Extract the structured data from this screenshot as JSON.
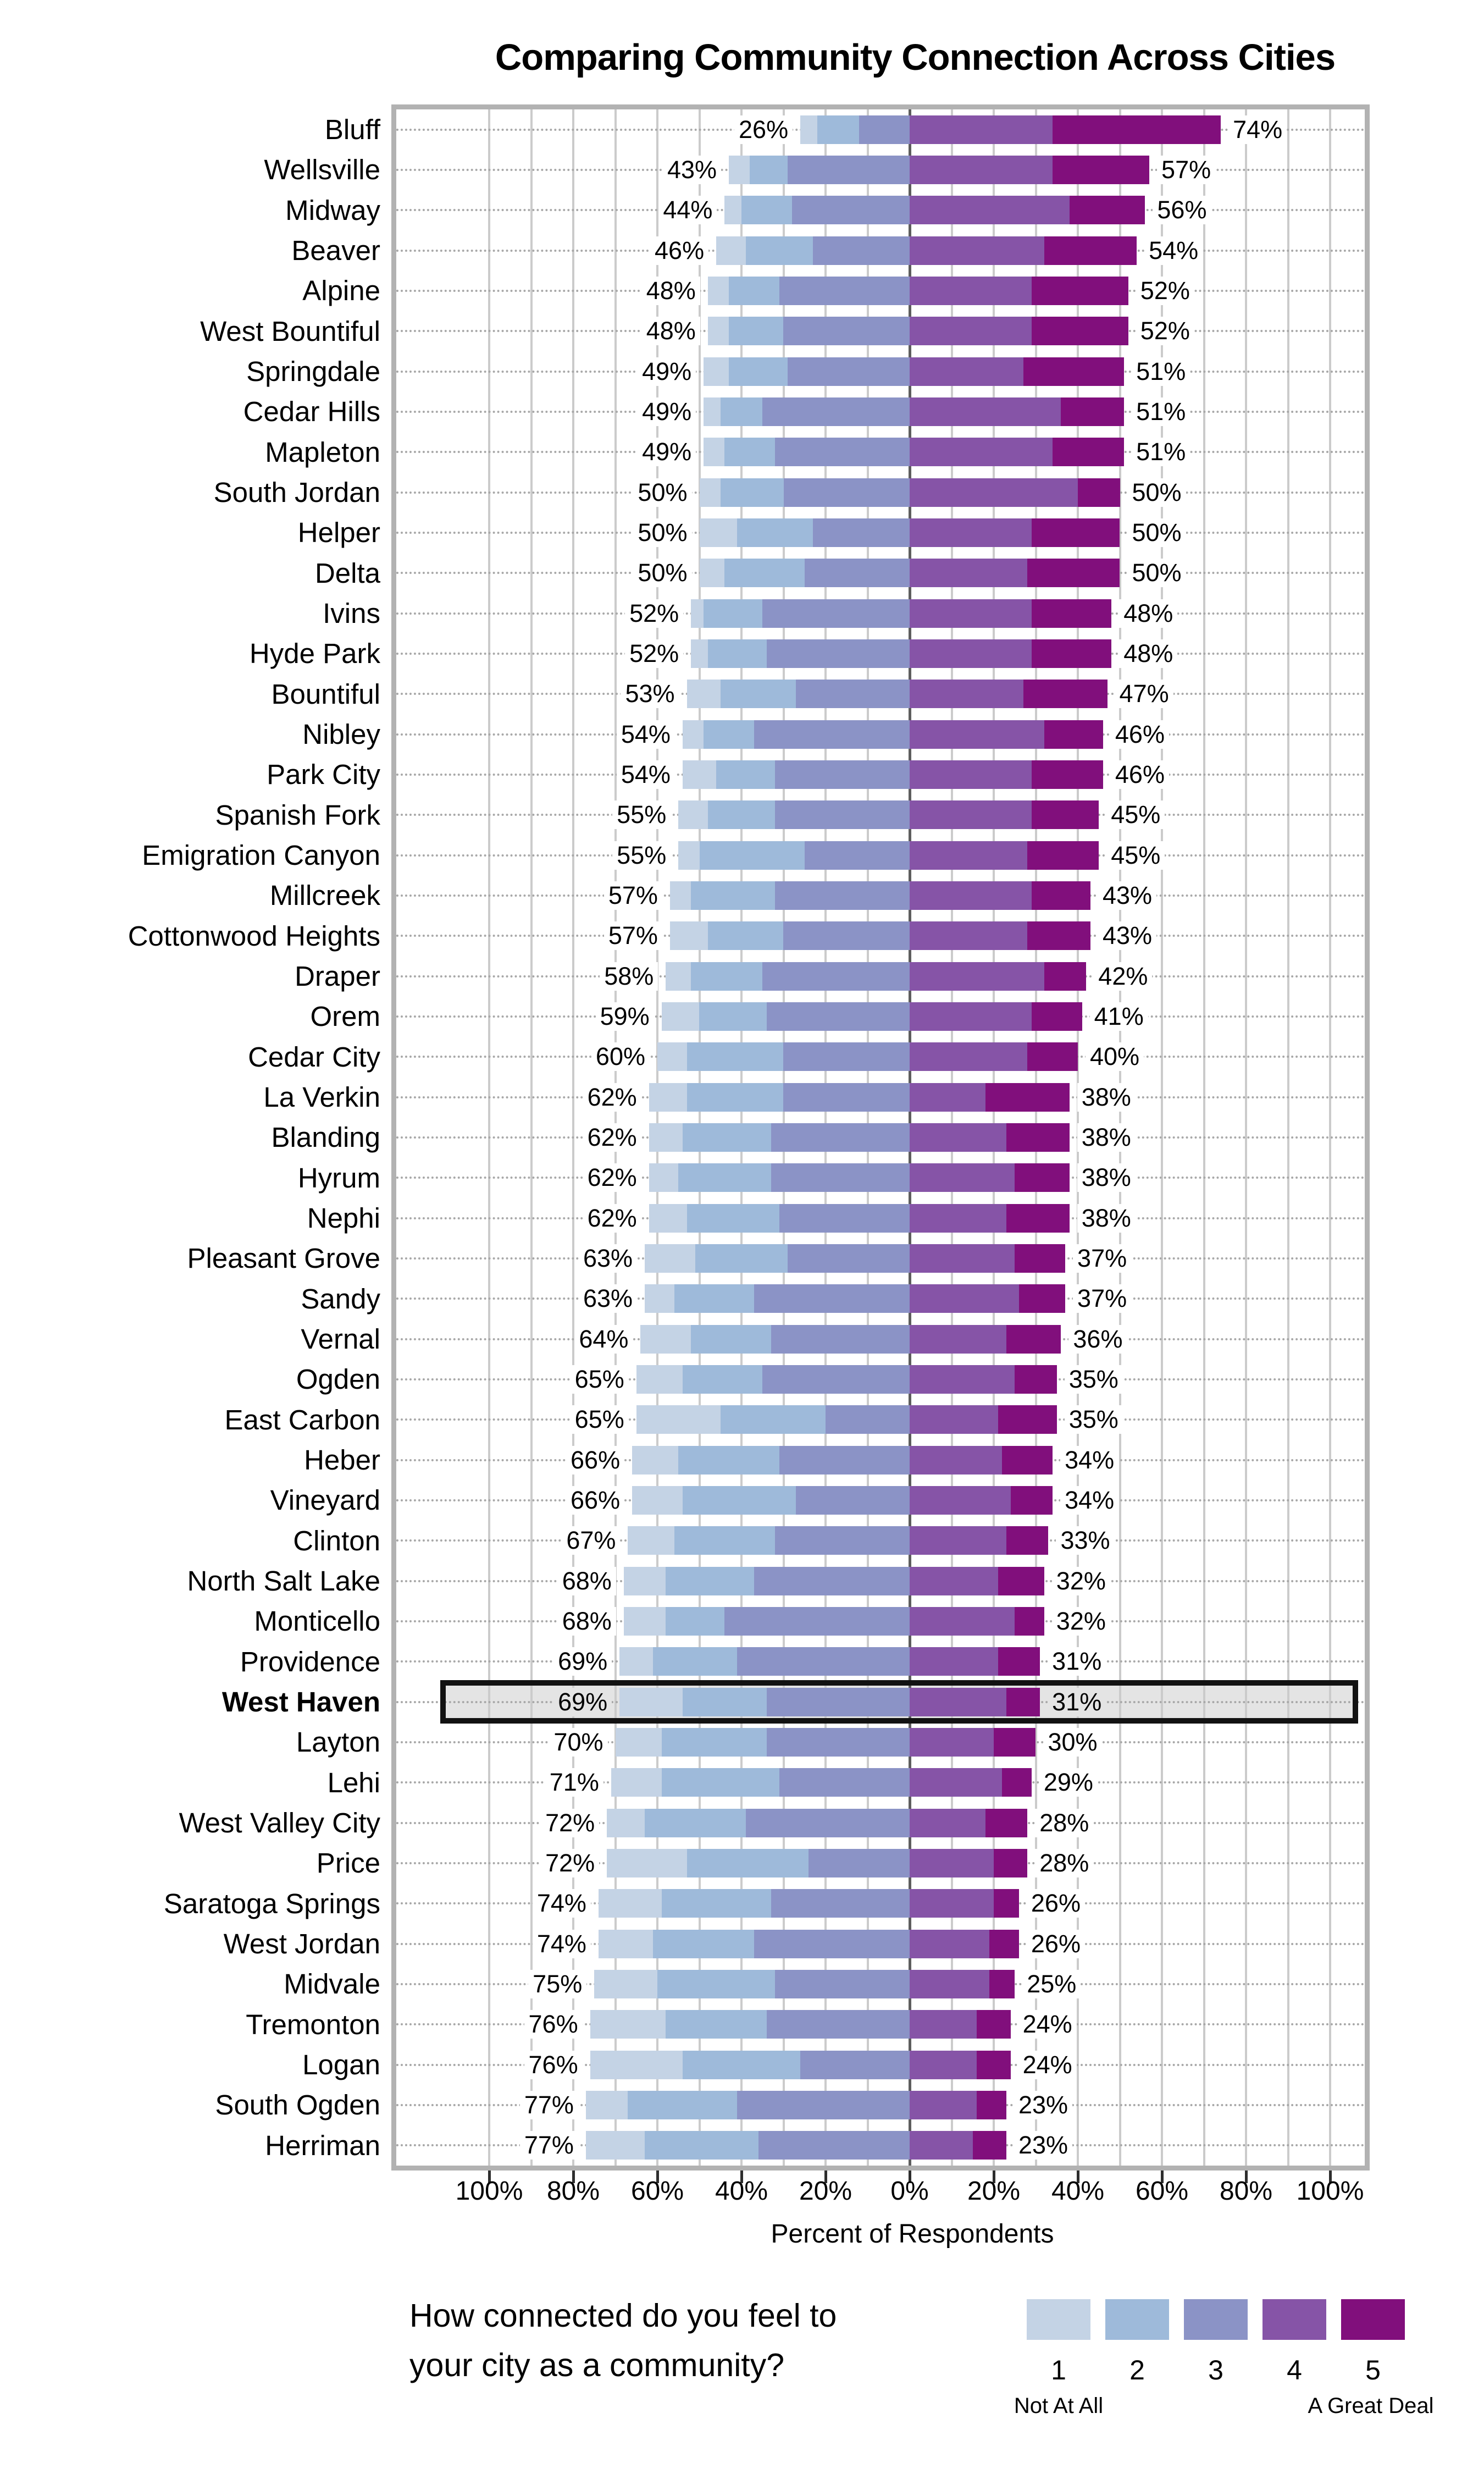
{
  "chart_data": {
    "type": "bar",
    "subtype": "diverging-stacked-likert",
    "title": "Comparing Community Connection Across Cities",
    "xlabel": "Percent of Respondents",
    "x_axis": {
      "tick_values": [
        -100,
        -80,
        -60,
        -40,
        -20,
        0,
        20,
        40,
        60,
        80,
        100
      ],
      "tick_labels": [
        "100%",
        "80%",
        "60%",
        "40%",
        "20%",
        "0%",
        "20%",
        "40%",
        "60%",
        "80%",
        "100%"
      ],
      "gridline_step_pct": 10,
      "xlim": [
        -123,
        109
      ]
    },
    "legend": {
      "question_line1": "How connected do you feel to",
      "question_line2": "your city as a community?",
      "levels": [
        "1",
        "2",
        "3",
        "4",
        "5"
      ],
      "low_label": "Not At All",
      "high_label": "A Great Deal",
      "level_colors": [
        "#c4d3e5",
        "#9ebada",
        "#8b93c6",
        "#8654a7",
        "#810f7c"
      ]
    },
    "colors": {
      "highlight_fill": "#e4e4e4",
      "highlight_border": "#121212",
      "gridline": "#cbcbcb",
      "zero_line": "#5e5e5e",
      "plot_border": "#b2b2b2"
    },
    "highlighted_city": "West Haven",
    "note": "left_label = % choosing 1-3, right_label = % choosing 4-5; values = [pct1,pct2,pct3,pct4,pct5]",
    "rows": [
      {
        "name": "Bluff",
        "left_label": "26%",
        "right_label": "74%",
        "values": [
          4,
          10,
          12,
          34,
          40
        ],
        "highlight": false
      },
      {
        "name": "Wellsville",
        "left_label": "43%",
        "right_label": "57%",
        "values": [
          5,
          9,
          29,
          34,
          23
        ],
        "highlight": false
      },
      {
        "name": "Midway",
        "left_label": "44%",
        "right_label": "56%",
        "values": [
          4,
          12,
          28,
          38,
          18
        ],
        "highlight": false
      },
      {
        "name": "Beaver",
        "left_label": "46%",
        "right_label": "54%",
        "values": [
          7,
          16,
          23,
          32,
          22
        ],
        "highlight": false
      },
      {
        "name": "Alpine",
        "left_label": "48%",
        "right_label": "52%",
        "values": [
          5,
          12,
          31,
          29,
          23
        ],
        "highlight": false
      },
      {
        "name": "West Bountiful",
        "left_label": "48%",
        "right_label": "52%",
        "values": [
          5,
          13,
          30,
          29,
          23
        ],
        "highlight": false
      },
      {
        "name": "Springdale",
        "left_label": "49%",
        "right_label": "51%",
        "values": [
          6,
          14,
          29,
          27,
          24
        ],
        "highlight": false
      },
      {
        "name": "Cedar Hills",
        "left_label": "49%",
        "right_label": "51%",
        "values": [
          4,
          10,
          35,
          36,
          15
        ],
        "highlight": false
      },
      {
        "name": "Mapleton",
        "left_label": "49%",
        "right_label": "51%",
        "values": [
          5,
          12,
          32,
          34,
          17
        ],
        "highlight": false
      },
      {
        "name": "South Jordan",
        "left_label": "50%",
        "right_label": "50%",
        "values": [
          5,
          15,
          30,
          40,
          10
        ],
        "highlight": false
      },
      {
        "name": "Helper",
        "left_label": "50%",
        "right_label": "50%",
        "values": [
          9,
          18,
          23,
          29,
          21
        ],
        "highlight": false
      },
      {
        "name": "Delta",
        "left_label": "50%",
        "right_label": "50%",
        "values": [
          6,
          19,
          25,
          28,
          22
        ],
        "highlight": false
      },
      {
        "name": "Ivins",
        "left_label": "52%",
        "right_label": "48%",
        "values": [
          3,
          14,
          35,
          29,
          19
        ],
        "highlight": false
      },
      {
        "name": "Hyde Park",
        "left_label": "52%",
        "right_label": "48%",
        "values": [
          4,
          14,
          34,
          29,
          19
        ],
        "highlight": false
      },
      {
        "name": "Bountiful",
        "left_label": "53%",
        "right_label": "47%",
        "values": [
          8,
          18,
          27,
          27,
          20
        ],
        "highlight": false
      },
      {
        "name": "Nibley",
        "left_label": "54%",
        "right_label": "46%",
        "values": [
          5,
          12,
          37,
          32,
          14
        ],
        "highlight": false
      },
      {
        "name": "Park City",
        "left_label": "54%",
        "right_label": "46%",
        "values": [
          8,
          14,
          32,
          29,
          17
        ],
        "highlight": false
      },
      {
        "name": "Spanish Fork",
        "left_label": "55%",
        "right_label": "45%",
        "values": [
          7,
          16,
          32,
          29,
          16
        ],
        "highlight": false
      },
      {
        "name": "Emigration Canyon",
        "left_label": "55%",
        "right_label": "45%",
        "values": [
          5,
          25,
          25,
          28,
          17
        ],
        "highlight": false
      },
      {
        "name": "Millcreek",
        "left_label": "57%",
        "right_label": "43%",
        "values": [
          5,
          20,
          32,
          29,
          14
        ],
        "highlight": false
      },
      {
        "name": "Cottonwood Heights",
        "left_label": "57%",
        "right_label": "43%",
        "values": [
          9,
          18,
          30,
          28,
          15
        ],
        "highlight": false
      },
      {
        "name": "Draper",
        "left_label": "58%",
        "right_label": "42%",
        "values": [
          6,
          17,
          35,
          32,
          10
        ],
        "highlight": false
      },
      {
        "name": "Orem",
        "left_label": "59%",
        "right_label": "41%",
        "values": [
          9,
          16,
          34,
          29,
          12
        ],
        "highlight": false
      },
      {
        "name": "Cedar City",
        "left_label": "60%",
        "right_label": "40%",
        "values": [
          7,
          23,
          30,
          28,
          12
        ],
        "highlight": false
      },
      {
        "name": "La Verkin",
        "left_label": "62%",
        "right_label": "38%",
        "values": [
          9,
          23,
          30,
          18,
          20
        ],
        "highlight": false
      },
      {
        "name": "Blanding",
        "left_label": "62%",
        "right_label": "38%",
        "values": [
          8,
          21,
          33,
          23,
          15
        ],
        "highlight": false
      },
      {
        "name": "Hyrum",
        "left_label": "62%",
        "right_label": "38%",
        "values": [
          7,
          22,
          33,
          25,
          13
        ],
        "highlight": false
      },
      {
        "name": "Nephi",
        "left_label": "62%",
        "right_label": "38%",
        "values": [
          9,
          22,
          31,
          23,
          15
        ],
        "highlight": false
      },
      {
        "name": "Pleasant Grove",
        "left_label": "63%",
        "right_label": "37%",
        "values": [
          12,
          22,
          29,
          25,
          12
        ],
        "highlight": false
      },
      {
        "name": "Sandy",
        "left_label": "63%",
        "right_label": "37%",
        "values": [
          7,
          19,
          37,
          26,
          11
        ],
        "highlight": false
      },
      {
        "name": "Vernal",
        "left_label": "64%",
        "right_label": "36%",
        "values": [
          12,
          19,
          33,
          23,
          13
        ],
        "highlight": false
      },
      {
        "name": "Ogden",
        "left_label": "65%",
        "right_label": "35%",
        "values": [
          11,
          19,
          35,
          25,
          10
        ],
        "highlight": false
      },
      {
        "name": "East Carbon",
        "left_label": "65%",
        "right_label": "35%",
        "values": [
          20,
          25,
          20,
          21,
          14
        ],
        "highlight": false
      },
      {
        "name": "Heber",
        "left_label": "66%",
        "right_label": "34%",
        "values": [
          11,
          24,
          31,
          22,
          12
        ],
        "highlight": false
      },
      {
        "name": "Vineyard",
        "left_label": "66%",
        "right_label": "34%",
        "values": [
          12,
          27,
          27,
          24,
          10
        ],
        "highlight": false
      },
      {
        "name": "Clinton",
        "left_label": "67%",
        "right_label": "33%",
        "values": [
          11,
          24,
          32,
          23,
          10
        ],
        "highlight": false
      },
      {
        "name": "North Salt Lake",
        "left_label": "68%",
        "right_label": "32%",
        "values": [
          10,
          21,
          37,
          21,
          11
        ],
        "highlight": false
      },
      {
        "name": "Monticello",
        "left_label": "68%",
        "right_label": "32%",
        "values": [
          10,
          14,
          44,
          25,
          7
        ],
        "highlight": false
      },
      {
        "name": "Providence",
        "left_label": "69%",
        "right_label": "31%",
        "values": [
          8,
          20,
          41,
          21,
          10
        ],
        "highlight": false
      },
      {
        "name": "West Haven",
        "left_label": "69%",
        "right_label": "31%",
        "values": [
          15,
          20,
          34,
          23,
          8
        ],
        "highlight": true
      },
      {
        "name": "Layton",
        "left_label": "70%",
        "right_label": "30%",
        "values": [
          11,
          25,
          34,
          20,
          10
        ],
        "highlight": false
      },
      {
        "name": "Lehi",
        "left_label": "71%",
        "right_label": "29%",
        "values": [
          12,
          28,
          31,
          22,
          7
        ],
        "highlight": false
      },
      {
        "name": "West Valley City",
        "left_label": "72%",
        "right_label": "28%",
        "values": [
          9,
          24,
          39,
          18,
          10
        ],
        "highlight": false
      },
      {
        "name": "Price",
        "left_label": "72%",
        "right_label": "28%",
        "values": [
          19,
          29,
          24,
          20,
          8
        ],
        "highlight": false
      },
      {
        "name": "Saratoga Springs",
        "left_label": "74%",
        "right_label": "26%",
        "values": [
          15,
          26,
          33,
          20,
          6
        ],
        "highlight": false
      },
      {
        "name": "West Jordan",
        "left_label": "74%",
        "right_label": "26%",
        "values": [
          13,
          24,
          37,
          19,
          7
        ],
        "highlight": false
      },
      {
        "name": "Midvale",
        "left_label": "75%",
        "right_label": "25%",
        "values": [
          15,
          28,
          32,
          19,
          6
        ],
        "highlight": false
      },
      {
        "name": "Tremonton",
        "left_label": "76%",
        "right_label": "24%",
        "values": [
          18,
          24,
          34,
          16,
          8
        ],
        "highlight": false
      },
      {
        "name": "Logan",
        "left_label": "76%",
        "right_label": "24%",
        "values": [
          22,
          28,
          26,
          16,
          8
        ],
        "highlight": false
      },
      {
        "name": "South Ogden",
        "left_label": "77%",
        "right_label": "23%",
        "values": [
          10,
          26,
          41,
          16,
          7
        ],
        "highlight": false
      },
      {
        "name": "Herriman",
        "left_label": "77%",
        "right_label": "23%",
        "values": [
          14,
          27,
          36,
          15,
          8
        ],
        "highlight": false
      }
    ]
  }
}
